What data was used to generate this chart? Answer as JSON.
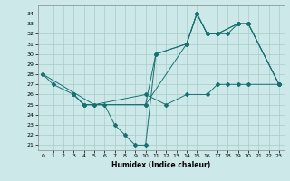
{
  "xlabel": "Humidex (Indice chaleur)",
  "background_color": "#cce8e8",
  "grid_color": "#aacccc",
  "line_color": "#1a7070",
  "xlim": [
    -0.5,
    23.5
  ],
  "ylim": [
    20.5,
    34.8
  ],
  "xticks": [
    0,
    1,
    2,
    3,
    4,
    5,
    6,
    7,
    8,
    9,
    10,
    11,
    12,
    13,
    14,
    15,
    16,
    17,
    18,
    19,
    20,
    21,
    22,
    23
  ],
  "yticks": [
    21,
    22,
    23,
    24,
    25,
    26,
    27,
    28,
    29,
    30,
    31,
    32,
    33,
    34
  ],
  "line1_x": [
    0,
    1,
    3,
    4,
    5,
    6,
    7,
    8,
    9,
    10,
    11,
    14,
    15,
    16,
    17,
    19,
    20,
    23
  ],
  "line1_y": [
    28,
    27,
    26,
    25,
    25,
    25,
    23,
    22,
    21,
    21,
    30,
    31,
    34,
    32,
    32,
    33,
    33,
    27
  ],
  "line2_x": [
    3,
    4,
    10,
    11,
    14,
    15,
    16,
    17,
    19,
    20,
    23
  ],
  "line2_y": [
    26,
    25,
    25,
    30,
    31,
    34,
    32,
    32,
    33,
    33,
    27
  ],
  "line3_x": [
    3,
    4,
    10,
    14,
    15,
    16,
    17,
    18,
    19,
    20,
    23
  ],
  "line3_y": [
    26,
    25,
    25,
    31,
    34,
    32,
    32,
    32,
    33,
    33,
    27
  ],
  "line4_x": [
    0,
    5,
    10,
    12,
    14,
    16,
    17,
    18,
    19,
    20,
    23
  ],
  "line4_y": [
    28,
    25,
    26,
    25,
    26,
    26,
    27,
    27,
    27,
    27,
    27
  ]
}
